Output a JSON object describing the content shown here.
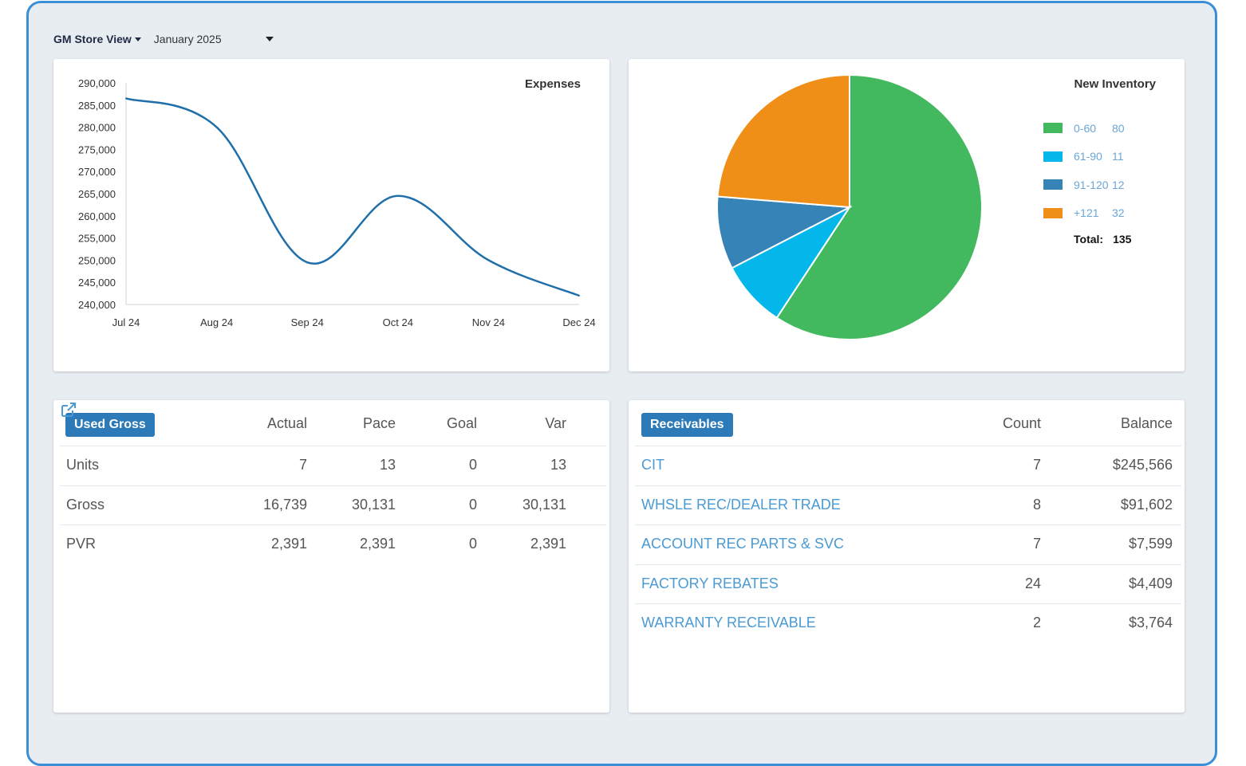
{
  "header": {
    "store_view_label": "GM Store View",
    "month_value": "January 2025"
  },
  "expenses_chart": {
    "title": "Expenses",
    "chart_data": {
      "type": "line",
      "title": "Expenses",
      "x": [
        "Jul 24",
        "Aug 24",
        "Sep 24",
        "Oct 24",
        "Nov 24",
        "Dec 24"
      ],
      "series": [
        {
          "values": [
            286500,
            280000,
            249500,
            264500,
            250000,
            242000
          ],
          "color": "#1f6faa"
        }
      ],
      "ylim": [
        240000,
        290000
      ],
      "yticks": [
        "290,000",
        "285,000",
        "280,000",
        "275,000",
        "270,000",
        "265,000",
        "260,000",
        "255,000",
        "250,000",
        "245,000",
        "240,000"
      ],
      "ytick_values": [
        290000,
        285000,
        280000,
        275000,
        270000,
        265000,
        260000,
        255000,
        250000,
        245000,
        240000
      ],
      "grid": false
    }
  },
  "inventory_chart": {
    "title": "New Inventory",
    "chart_data": {
      "type": "pie",
      "title": "New Inventory",
      "slices": [
        {
          "label": "0-60",
          "value": 80,
          "color": "#43b95f"
        },
        {
          "label": "61-90",
          "value": 11,
          "color": "#04b7ea"
        },
        {
          "label": "91-120",
          "value": 12,
          "color": "#3583b7"
        },
        {
          "label": "+121",
          "value": 32,
          "color": "#f08f17"
        }
      ],
      "legend_placement": "right"
    },
    "legend": [
      {
        "label": "0-60",
        "value": "80",
        "color": "#43b95f"
      },
      {
        "label": "61-90",
        "value": "11",
        "color": "#04b7ea"
      },
      {
        "label": "91-120",
        "value": "12",
        "color": "#3583b7"
      },
      {
        "label": "+121",
        "value": "32",
        "color": "#f08f17"
      }
    ],
    "total_label": "Total:",
    "total_value": "135"
  },
  "used_gross": {
    "badge": "Used Gross",
    "columns": [
      "Actual",
      "Pace",
      "Goal",
      "Var"
    ],
    "rows": [
      {
        "label": "Units",
        "actual": "7",
        "pace": "13",
        "goal": "0",
        "var": "13"
      },
      {
        "label": "Gross",
        "actual": "16,739",
        "pace": "30,131",
        "goal": "0",
        "var": "30,131"
      },
      {
        "label": "PVR",
        "actual": "2,391",
        "pace": "2,391",
        "goal": "0",
        "var": "2,391"
      }
    ]
  },
  "receivables": {
    "badge": "Receivables",
    "columns": [
      "Count",
      "Balance"
    ],
    "rows": [
      {
        "label": "CIT",
        "count": "7",
        "balance": "$245,566"
      },
      {
        "label": "WHSLE REC/DEALER TRADE",
        "count": "8",
        "balance": "$91,602"
      },
      {
        "label": "ACCOUNT REC PARTS & SVC",
        "count": "7",
        "balance": "$7,599"
      },
      {
        "label": "FACTORY REBATES",
        "count": "24",
        "balance": "$4,409"
      },
      {
        "label": "WARRANTY RECEIVABLE",
        "count": "2",
        "balance": "$3,764"
      }
    ]
  }
}
